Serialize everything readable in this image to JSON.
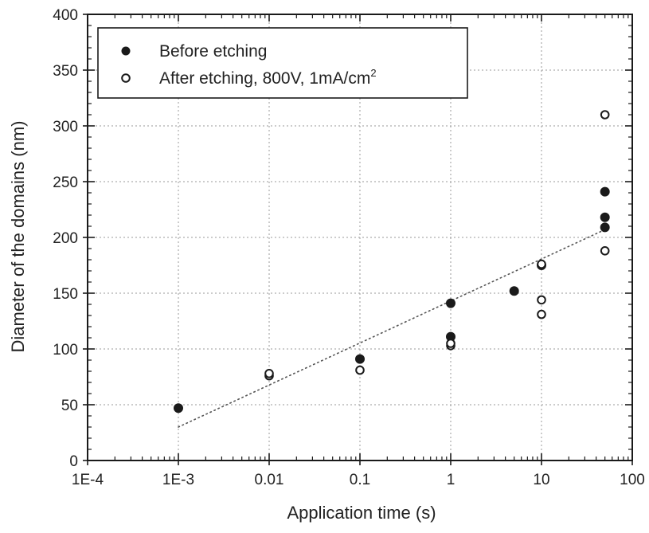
{
  "chart_data": {
    "type": "scatter",
    "title": "",
    "xlabel": "Application time (s)",
    "ylabel": "Diameter of the domains (nm)",
    "xscale": "log",
    "xlim": [
      0.0001,
      100
    ],
    "ylim": [
      0,
      400
    ],
    "x_ticks": [
      {
        "value": 0.0001,
        "label": "1E-4"
      },
      {
        "value": 0.001,
        "label": "1E-3"
      },
      {
        "value": 0.01,
        "label": "0.01"
      },
      {
        "value": 0.1,
        "label": "0.1"
      },
      {
        "value": 1,
        "label": "1"
      },
      {
        "value": 10,
        "label": "10"
      },
      {
        "value": 100,
        "label": "100"
      }
    ],
    "y_ticks": [
      0,
      50,
      100,
      150,
      200,
      250,
      300,
      350,
      400
    ],
    "grid": true,
    "legend_position": "top-left",
    "series": [
      {
        "name": "Before etching",
        "marker": "filled-circle",
        "color": "#1a1a1a",
        "points": [
          {
            "x": 0.001,
            "y": 47
          },
          {
            "x": 0.1,
            "y": 91
          },
          {
            "x": 1,
            "y": 111
          },
          {
            "x": 1,
            "y": 141
          },
          {
            "x": 5,
            "y": 152
          },
          {
            "x": 10,
            "y": 175
          },
          {
            "x": 50,
            "y": 209
          },
          {
            "x": 50,
            "y": 218
          },
          {
            "x": 50,
            "y": 241
          }
        ]
      },
      {
        "name": "After etching, 800V, 1mA/cm",
        "name_superscript": "2",
        "marker": "open-circle",
        "color": "#1a1a1a",
        "points": [
          {
            "x": 0.01,
            "y": 76
          },
          {
            "x": 0.01,
            "y": 78
          },
          {
            "x": 0.1,
            "y": 81
          },
          {
            "x": 1,
            "y": 103
          },
          {
            "x": 1,
            "y": 105
          },
          {
            "x": 10,
            "y": 131
          },
          {
            "x": 10,
            "y": 144
          },
          {
            "x": 10,
            "y": 176
          },
          {
            "x": 50,
            "y": 188
          },
          {
            "x": 50,
            "y": 310
          }
        ]
      }
    ],
    "trendline": {
      "style": "dotted",
      "from": {
        "x": 0.001,
        "y": 30
      },
      "to": {
        "x": 50,
        "y": 207
      }
    }
  }
}
